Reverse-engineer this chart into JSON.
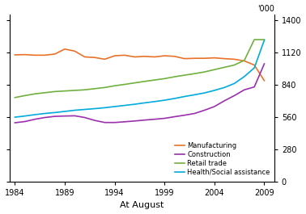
{
  "ylabel_right": "'000",
  "xlabel": "At August",
  "yticks": [
    0,
    280,
    560,
    840,
    1120,
    1400
  ],
  "xticks": [
    1984,
    1989,
    1994,
    1999,
    2004,
    2009
  ],
  "ylim": [
    0,
    1450
  ],
  "xlim": [
    1983.5,
    2010.0
  ],
  "series": {
    "Manufacturing": {
      "color": "#E8722A",
      "years": [
        1984,
        1985,
        1986,
        1987,
        1988,
        1989,
        1990,
        1991,
        1992,
        1993,
        1994,
        1995,
        1996,
        1997,
        1998,
        1999,
        2000,
        2001,
        2002,
        2003,
        2004,
        2005,
        2006,
        2007,
        2008,
        2009
      ],
      "values": [
        1098,
        1100,
        1095,
        1095,
        1105,
        1148,
        1130,
        1080,
        1075,
        1060,
        1090,
        1095,
        1080,
        1085,
        1080,
        1090,
        1085,
        1065,
        1068,
        1068,
        1072,
        1065,
        1060,
        1045,
        1010,
        875
      ]
    },
    "Construction": {
      "color": "#9B30AC",
      "years": [
        1984,
        1985,
        1986,
        1987,
        1988,
        1989,
        1990,
        1991,
        1992,
        1993,
        1994,
        1995,
        1996,
        1997,
        1998,
        1999,
        2000,
        2001,
        2002,
        2003,
        2004,
        2005,
        2006,
        2007,
        2008,
        2009
      ],
      "values": [
        510,
        520,
        540,
        555,
        565,
        568,
        570,
        555,
        530,
        512,
        512,
        518,
        525,
        533,
        540,
        548,
        562,
        575,
        590,
        618,
        650,
        700,
        745,
        795,
        820,
        1020
      ]
    },
    "Retail trade": {
      "color": "#70B040",
      "years": [
        1984,
        1985,
        1986,
        1987,
        1988,
        1989,
        1990,
        1991,
        1992,
        1993,
        1994,
        1995,
        1996,
        1997,
        1998,
        1999,
        2000,
        2001,
        2002,
        2003,
        2004,
        2005,
        2006,
        2007,
        2008,
        2009
      ],
      "values": [
        728,
        745,
        760,
        770,
        780,
        785,
        790,
        795,
        805,
        815,
        830,
        842,
        855,
        868,
        880,
        892,
        908,
        922,
        935,
        950,
        970,
        990,
        1010,
        1050,
        1230,
        1230
      ]
    },
    "Health/Social assistance": {
      "color": "#00AADD",
      "years": [
        1984,
        1985,
        1986,
        1987,
        1988,
        1989,
        1990,
        1991,
        1992,
        1993,
        1994,
        1995,
        1996,
        1997,
        1998,
        1999,
        2000,
        2001,
        2002,
        2003,
        2004,
        2005,
        2006,
        2007,
        2008,
        2009
      ],
      "values": [
        558,
        568,
        580,
        590,
        598,
        608,
        618,
        625,
        632,
        640,
        650,
        660,
        670,
        682,
        693,
        705,
        720,
        737,
        752,
        768,
        790,
        815,
        850,
        910,
        985,
        1225
      ]
    }
  },
  "background_color": "#FFFFFF",
  "line_width": 1.2
}
